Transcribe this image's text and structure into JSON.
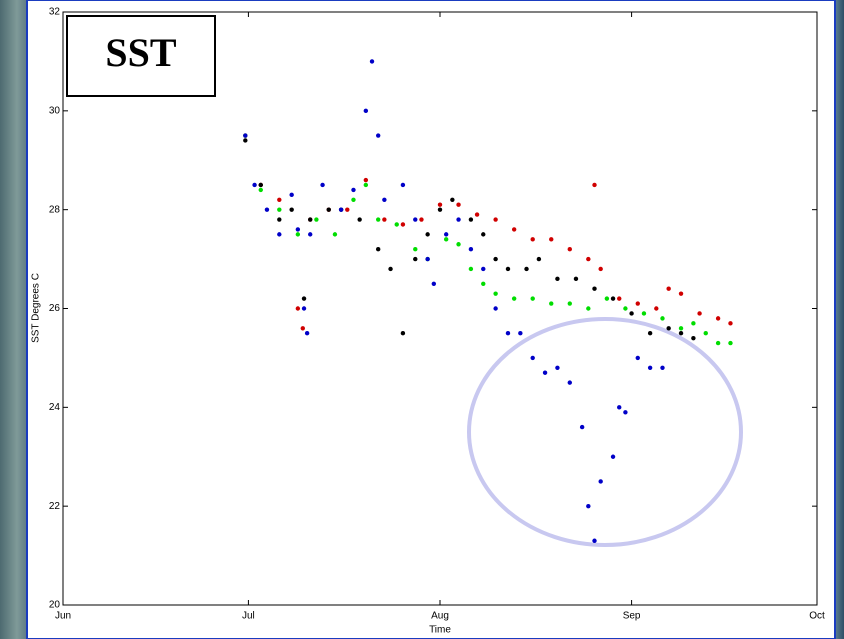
{
  "chart_data": {
    "type": "scatter",
    "label_box": "SST",
    "ylabel": "SST Degrees C",
    "xlabel": "Time",
    "xlim": [
      0,
      122
    ],
    "xticks": [
      {
        "value": 0,
        "label": "Jun"
      },
      {
        "value": 30,
        "label": "Jul"
      },
      {
        "value": 61,
        "label": "Aug"
      },
      {
        "value": 92,
        "label": "Sep"
      },
      {
        "value": 122,
        "label": "Oct"
      }
    ],
    "ylim": [
      20,
      32
    ],
    "yticks": [
      20,
      22,
      24,
      26,
      28,
      30,
      32
    ],
    "series": [
      {
        "color": "#d00000",
        "x": [
          29.5,
          32,
          35,
          38,
          38.8,
          40,
          43,
          46,
          49,
          52,
          55,
          58,
          61,
          64,
          67,
          70,
          73,
          76,
          79,
          82,
          85,
          86,
          87,
          90,
          93,
          96,
          98,
          100,
          103,
          106,
          108
        ],
        "values": [
          29.5,
          28.5,
          28.2,
          26,
          25.6,
          27.8,
          28,
          28,
          28.6,
          27.8,
          27.7,
          27.8,
          28.1,
          28.1,
          27.9,
          27.8,
          27.6,
          27.4,
          27.4,
          27.2,
          27,
          28.5,
          26.8,
          26.2,
          26.1,
          26,
          26.4,
          26.3,
          25.9,
          25.8,
          25.7
        ]
      },
      {
        "color": "#000000",
        "x": [
          29.5,
          32,
          35,
          37,
          39,
          40,
          43,
          45,
          48,
          51,
          53,
          55,
          57,
          59,
          61,
          63,
          66,
          68,
          70,
          72,
          75,
          77,
          80,
          83,
          86,
          89,
          92,
          95,
          98,
          100,
          102
        ],
        "values": [
          29.4,
          28.5,
          27.8,
          28,
          26.2,
          27.8,
          28,
          28,
          27.8,
          27.2,
          26.8,
          25.5,
          27,
          27.5,
          28,
          28.2,
          27.8,
          27.5,
          27,
          26.8,
          26.8,
          27,
          26.6,
          26.6,
          26.4,
          26.2,
          25.9,
          25.5,
          25.6,
          25.5,
          25.4
        ]
      },
      {
        "color": "#00dd00",
        "x": [
          29.5,
          32,
          35,
          38,
          41,
          44,
          47,
          49,
          51,
          54,
          57,
          59,
          62,
          64,
          66,
          68,
          70,
          73,
          76,
          79,
          82,
          85,
          88,
          91,
          94,
          97,
          100,
          102,
          104,
          106,
          108
        ],
        "values": [
          29.5,
          28.4,
          28,
          27.5,
          27.8,
          27.5,
          28.2,
          28.5,
          27.8,
          27.7,
          27.2,
          27,
          27.4,
          27.3,
          26.8,
          26.5,
          26.3,
          26.2,
          26.2,
          26.1,
          26.1,
          26,
          26.2,
          26,
          25.9,
          25.8,
          25.6,
          25.7,
          25.5,
          25.3,
          25.3
        ]
      },
      {
        "color": "#0000c8",
        "x": [
          29.5,
          31,
          33,
          35,
          37,
          38,
          39,
          39.5,
          40,
          42,
          45,
          47,
          49,
          50,
          51,
          52,
          55,
          57,
          59,
          60,
          62,
          64,
          66,
          68,
          70,
          72,
          74,
          76,
          78,
          80,
          82,
          84,
          85,
          86,
          87,
          89,
          90,
          91,
          93,
          95,
          97
        ],
        "values": [
          29.5,
          28.5,
          28,
          27.5,
          28.3,
          27.6,
          26,
          25.5,
          27.5,
          28.5,
          28,
          28.4,
          30,
          31,
          29.5,
          28.2,
          28.5,
          27.8,
          27,
          26.5,
          27.5,
          27.8,
          27.2,
          26.8,
          26,
          25.5,
          25.5,
          25,
          24.7,
          24.8,
          24.5,
          23.6,
          22,
          21.3,
          22.5,
          23,
          24,
          23.9,
          25,
          24.8,
          24.8
        ]
      }
    ]
  }
}
